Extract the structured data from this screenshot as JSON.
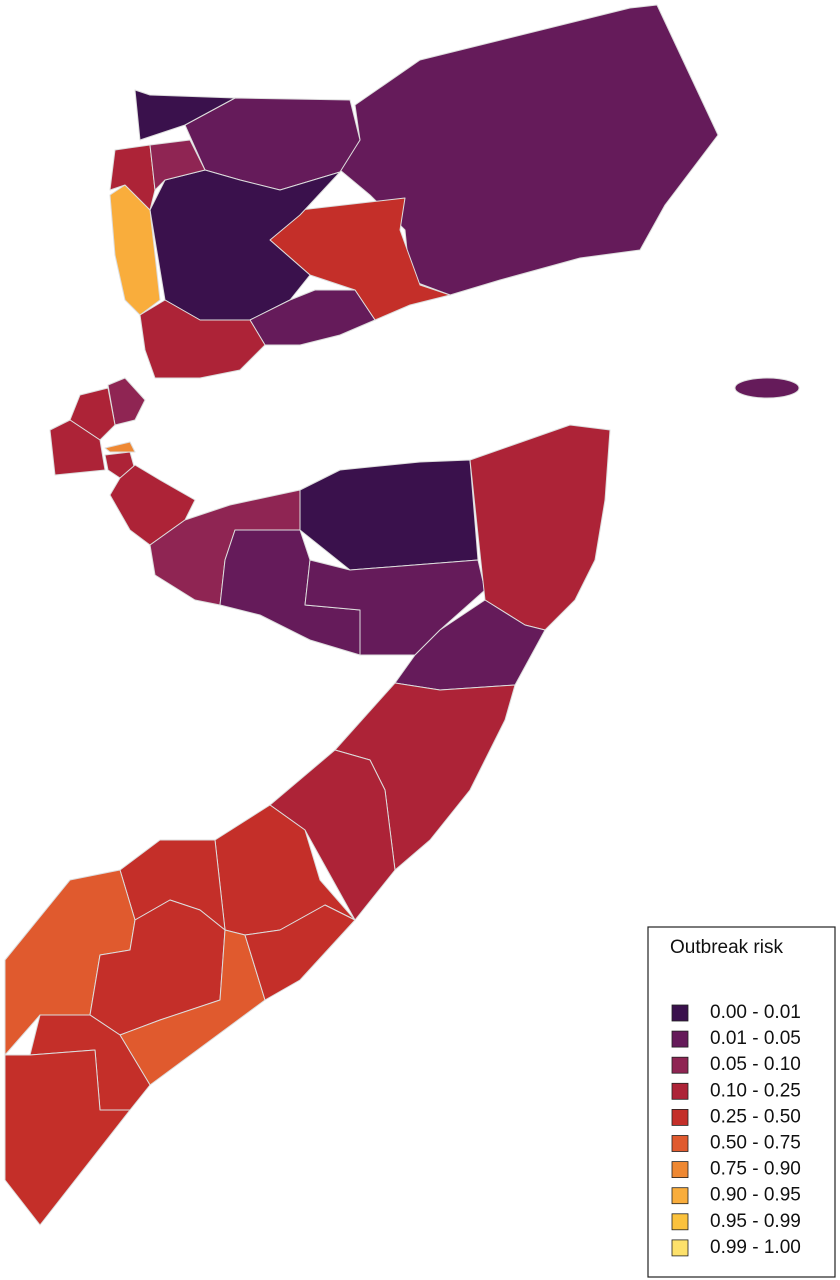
{
  "legend": {
    "title": "Outbreak risk",
    "items": [
      {
        "label": "0.00 - 0.01",
        "color": "#3a114c"
      },
      {
        "label": "0.01 - 0.05",
        "color": "#651b5a"
      },
      {
        "label": "0.05 - 0.10",
        "color": "#8f2553"
      },
      {
        "label": "0.10 - 0.25",
        "color": "#ad2337"
      },
      {
        "label": "0.25 - 0.50",
        "color": "#c42f29"
      },
      {
        "label": "0.50 - 0.75",
        "color": "#e05a2e"
      },
      {
        "label": "0.75 - 0.90",
        "color": "#ee8833"
      },
      {
        "label": "0.90 - 0.95",
        "color": "#f9ad3c"
      },
      {
        "label": "0.95 - 0.99",
        "color": "#fbc23d"
      },
      {
        "label": "0.99 - 1.00",
        "color": "#fde16b"
      }
    ]
  }
}
